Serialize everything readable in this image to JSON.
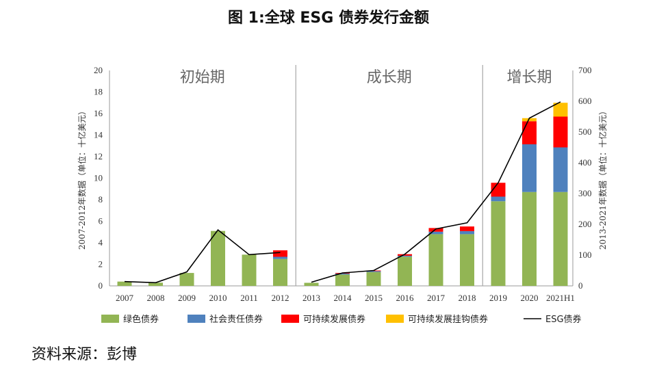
{
  "title": "图 1:全球 ESG 债券发行金额",
  "source": "资料来源：彭博",
  "chart_data": {
    "type": "bar",
    "title": "图 1:全球 ESG 债券发行金额",
    "categories": [
      "2007",
      "2008",
      "2009",
      "2010",
      "2011",
      "2012",
      "2013",
      "2014",
      "2015",
      "2016",
      "2017",
      "2018",
      "2019",
      "2020",
      "2021H1"
    ],
    "series": [
      {
        "name": "绿色债券",
        "color": "#92b554",
        "values": [
          0.4,
          0.3,
          1.2,
          5.1,
          2.9,
          2.5,
          10,
          37,
          45,
          95,
          168,
          168,
          275,
          305,
          305
        ]
      },
      {
        "name": "社会责任债券",
        "color": "#4f81bd",
        "values": [
          0,
          0,
          0,
          0,
          0,
          0.2,
          0,
          3,
          3,
          3,
          8,
          10,
          15,
          155,
          145
        ]
      },
      {
        "name": "可持续发展债券",
        "color": "#ff0000",
        "values": [
          0,
          0,
          0,
          0,
          0,
          0.6,
          0,
          2,
          2,
          5,
          12,
          15,
          45,
          75,
          100
        ]
      },
      {
        "name": "可持续发展挂钩债券",
        "color": "#ffc000",
        "values": [
          0,
          0,
          0,
          0,
          0,
          0,
          0,
          0,
          0,
          0,
          0,
          0,
          0,
          10,
          45
        ]
      },
      {
        "name": "ESG债券",
        "color": "#000000",
        "type": "line",
        "values": [
          0.4,
          0.3,
          1.3,
          5.2,
          2.9,
          3.1,
          12,
          42,
          50,
          103,
          185,
          205,
          335,
          545,
          598
        ]
      }
    ],
    "left_axis": {
      "label": "2007-2012年数据（单位：十亿美元）",
      "range": [
        0,
        20
      ],
      "ticks": [
        "0",
        "2",
        "4",
        "6",
        "8",
        "10",
        "12",
        "14",
        "16",
        "18",
        "20"
      ],
      "applies_to": [
        "2007",
        "2008",
        "2009",
        "2010",
        "2011",
        "2012"
      ]
    },
    "right_axis": {
      "label": "2013-2021年数据（单位：十亿美元）",
      "range": [
        0,
        700
      ],
      "ticks": [
        "0",
        "100",
        "200",
        "300",
        "400",
        "500",
        "600",
        "700"
      ],
      "applies_to": [
        "2013",
        "2014",
        "2015",
        "2016",
        "2017",
        "2018",
        "2019",
        "2020",
        "2021H1"
      ]
    },
    "phases": [
      {
        "label": "初始期",
        "categories": [
          "2007",
          "2008",
          "2009",
          "2010",
          "2011",
          "2012"
        ]
      },
      {
        "label": "成长期",
        "categories": [
          "2013",
          "2014",
          "2015",
          "2016",
          "2017",
          "2018"
        ]
      },
      {
        "label": "增长期",
        "categories": [
          "2019",
          "2020",
          "2021H1"
        ]
      }
    ],
    "stack": true,
    "grid": false,
    "legend_position": "bottom"
  }
}
